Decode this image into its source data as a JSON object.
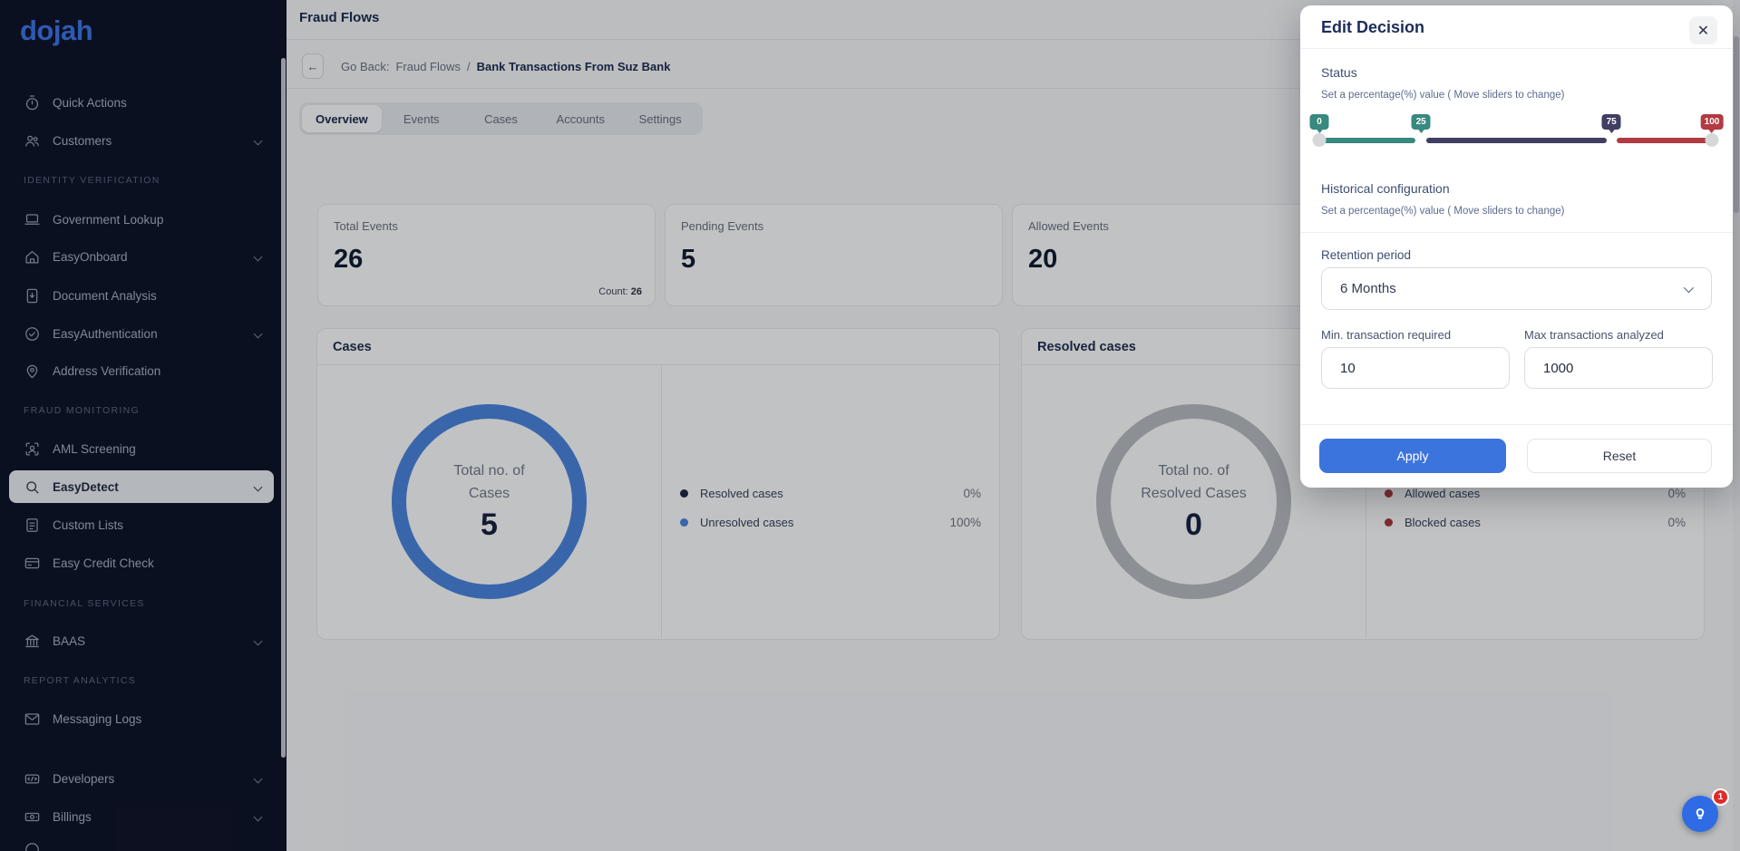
{
  "sidebar": {
    "logo": "dojah",
    "items": [
      {
        "type": "item",
        "icon": "stopwatch-icon",
        "label": "Quick Actions",
        "chevron": false
      },
      {
        "type": "item",
        "icon": "users-icon",
        "label": "Customers",
        "chevron": true
      },
      {
        "type": "section",
        "label": "IDENTITY VERIFICATION"
      },
      {
        "type": "item",
        "icon": "laptop-icon",
        "label": "Government Lookup",
        "chevron": false
      },
      {
        "type": "item",
        "icon": "home-icon",
        "label": "EasyOnboard",
        "chevron": true
      },
      {
        "type": "item",
        "icon": "document-icon",
        "label": "Document Analysis",
        "chevron": false
      },
      {
        "type": "item",
        "icon": "badge-check-icon",
        "label": "EasyAuthentication",
        "chevron": true
      },
      {
        "type": "item",
        "icon": "map-pin-icon",
        "label": "Address Verification",
        "chevron": false
      },
      {
        "type": "section",
        "label": "FRAUD MONITORING"
      },
      {
        "type": "item",
        "icon": "face-scan-icon",
        "label": "AML Screening",
        "chevron": false
      },
      {
        "type": "item",
        "icon": "search-icon",
        "label": "EasyDetect",
        "chevron": true,
        "active": true
      },
      {
        "type": "item",
        "icon": "list-icon",
        "label": "Custom Lists",
        "chevron": false
      },
      {
        "type": "item",
        "icon": "credit-card-icon",
        "label": "Easy Credit Check",
        "chevron": false
      },
      {
        "type": "section",
        "label": "FINANCIAL SERVICES"
      },
      {
        "type": "item",
        "icon": "bank-icon",
        "label": "BAAS",
        "chevron": true
      },
      {
        "type": "section",
        "label": "REPORT ANALYTICS"
      },
      {
        "type": "item",
        "icon": "envelope-icon",
        "label": "Messaging Logs",
        "chevron": false
      },
      {
        "type": "item",
        "icon": "dev-icon",
        "label": "Developers",
        "chevron": true
      },
      {
        "type": "item",
        "icon": "billing-icon",
        "label": "Billings",
        "chevron": true
      },
      {
        "type": "item",
        "icon": "circle-icon",
        "label": "",
        "chevron": false
      }
    ]
  },
  "header": {
    "title": "Fraud Flows"
  },
  "breadcrumb": {
    "back_arrow": "←",
    "back_label": "Go Back:",
    "parent": "Fraud Flows",
    "separator": "/",
    "current": "Bank Transactions From Suz Bank"
  },
  "tabs": [
    {
      "label": "Overview",
      "active": true
    },
    {
      "label": "Events",
      "active": false
    },
    {
      "label": "Cases",
      "active": false
    },
    {
      "label": "Accounts",
      "active": false
    },
    {
      "label": "Settings",
      "active": false
    }
  ],
  "stats": [
    {
      "label": "Total Events",
      "value": "26",
      "count_label": "Count:",
      "count": "26"
    },
    {
      "label": "Pending Events",
      "value": "5"
    },
    {
      "label": "Allowed Events",
      "value": "20"
    }
  ],
  "cases_panel": {
    "title": "Cases",
    "donut": {
      "center_line1": "Total no. of",
      "center_line2": "Cases",
      "center_value": "5",
      "ring_color": "#4a84df"
    },
    "legend": [
      {
        "label": "Resolved cases",
        "value": "0%",
        "color": "#1e2742"
      },
      {
        "label": "Unresolved cases",
        "value": "100%",
        "color": "#4a84df"
      }
    ]
  },
  "resolved_panel": {
    "title": "Resolved cases",
    "donut": {
      "center_line1": "Total no. of",
      "center_line2": "Resolved Cases",
      "center_value": "0",
      "ring_color": "#b9bcc2"
    },
    "legend": [
      {
        "label": "Allowed cases",
        "value": "0%",
        "color": "#a8393d"
      },
      {
        "label": "Blocked cases",
        "value": "0%",
        "color": "#a8393d"
      }
    ]
  },
  "modal": {
    "title": "Edit Decision",
    "close_glyph": "✕",
    "status_label": "Status",
    "status_helper": "Set a percentage(%) value ( Move sliders to change)",
    "slider": {
      "stops": [
        {
          "label": "0",
          "pct": 0,
          "color": "#38897f"
        },
        {
          "label": "25",
          "pct": 25.9,
          "color": "#38897f"
        },
        {
          "label": "75",
          "pct": 74.4,
          "color": "#413e63"
        },
        {
          "label": "100",
          "pct": 100,
          "color": "#b23a40"
        }
      ],
      "segments": [
        {
          "start": 0,
          "end": 24.5,
          "color": "#38897f"
        },
        {
          "start": 27.3,
          "end": 73.2,
          "color": "#413e63"
        },
        {
          "start": 75.8,
          "end": 99.5,
          "color": "#b23a40"
        }
      ],
      "handles": [
        0,
        100
      ]
    },
    "historical_label": "Historical configuration",
    "historical_helper": "Set a percentage(%) value ( Move sliders to change)",
    "retention_label": "Retention period",
    "retention_value": "6 Months",
    "min_label": "Min. transaction required",
    "min_value": "10",
    "max_label": "Max transactions analyzed",
    "max_value": "1000",
    "apply_label": "Apply",
    "reset_label": "Reset"
  },
  "chat": {
    "badge": "1"
  },
  "chart_data": [
    {
      "type": "pie",
      "title": "Cases",
      "series": [
        {
          "name": "Resolved cases",
          "value": 0,
          "color": "#1e2742"
        },
        {
          "name": "Unresolved cases",
          "value": 100,
          "color": "#4a84df"
        }
      ],
      "unit": "%",
      "center_label": "Total no. of Cases",
      "center_value": 5,
      "legend_position": "right"
    },
    {
      "type": "pie",
      "title": "Resolved cases",
      "series": [
        {
          "name": "Allowed cases",
          "value": 0,
          "color": "#a8393d"
        },
        {
          "name": "Blocked cases",
          "value": 0,
          "color": "#a8393d"
        }
      ],
      "unit": "%",
      "center_label": "Total no. of Resolved Cases",
      "center_value": 0,
      "legend_position": "right"
    }
  ]
}
